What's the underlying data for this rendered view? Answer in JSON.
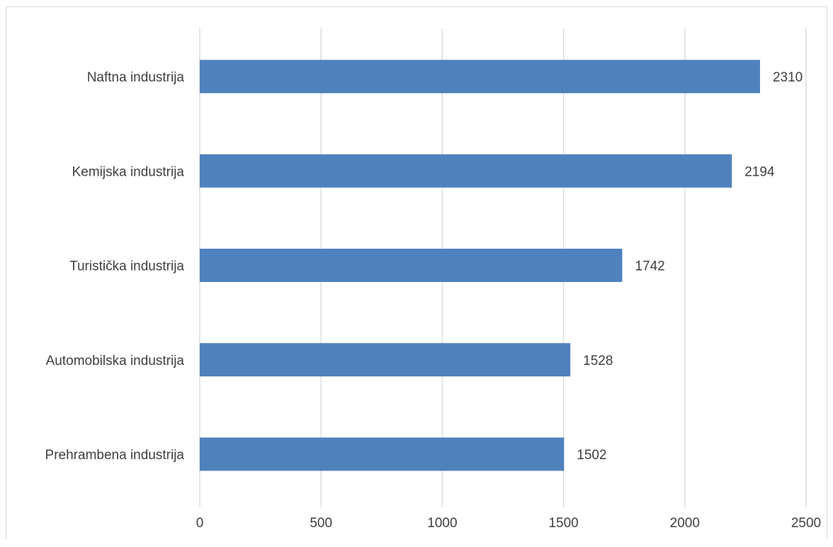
{
  "chart_data": {
    "type": "bar",
    "orientation": "horizontal",
    "title": "",
    "xlabel": "",
    "ylabel": "",
    "categories": [
      "Naftna industrija",
      "Kemijska industrija",
      "Turistička industrija",
      "Automobilska industrija",
      "Prehrambena industrija"
    ],
    "values": [
      2310,
      2194,
      1742,
      1528,
      1502
    ],
    "data_labels": [
      "2310",
      "2194",
      "1742",
      "1528",
      "1502"
    ],
    "xlim": [
      0,
      2500
    ],
    "xticks": [
      0,
      500,
      1000,
      1500,
      2000,
      2500
    ],
    "xtick_labels": [
      "0",
      "500",
      "1000",
      "1500",
      "2000",
      "2500"
    ],
    "grid": true,
    "legend": "none",
    "bar_color": "#4f81bd",
    "grid_color": "#d9d9d9"
  }
}
